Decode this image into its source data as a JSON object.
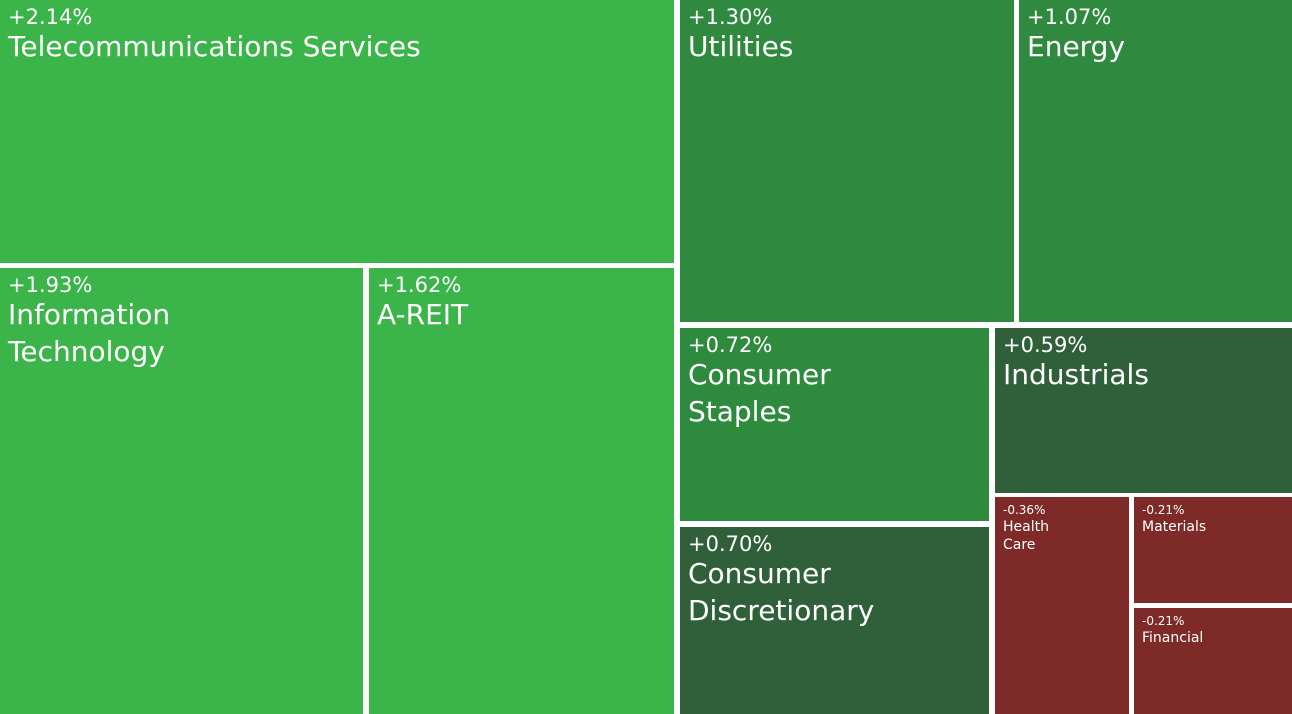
{
  "chart_data": {
    "type": "treemap",
    "categories": [
      "Telecommunications Services",
      "Information Technology",
      "A-REIT",
      "Utilities",
      "Energy",
      "Consumer Staples",
      "Industrials",
      "Consumer Discretionary",
      "Health Care",
      "Materials",
      "Financial"
    ],
    "values": [
      2.14,
      1.93,
      1.62,
      1.3,
      1.07,
      0.72,
      0.59,
      0.7,
      -0.36,
      -0.21,
      -0.21
    ],
    "value_labels": [
      "+2.14%",
      "+1.93%",
      "+1.62%",
      "+1.30%",
      "+1.07%",
      "+0.72%",
      "+0.59%",
      "+0.70%",
      "-0.36%",
      "-0.21%",
      "-0.21%"
    ],
    "colors": [
      "#3bb54a",
      "#3bb54a",
      "#3bb54a",
      "#2f8a3f",
      "#2f8a3f",
      "#2e8a3d",
      "#30603a",
      "#30603a",
      "#7d2a28",
      "#7d2a28",
      "#7d2a28"
    ]
  }
}
